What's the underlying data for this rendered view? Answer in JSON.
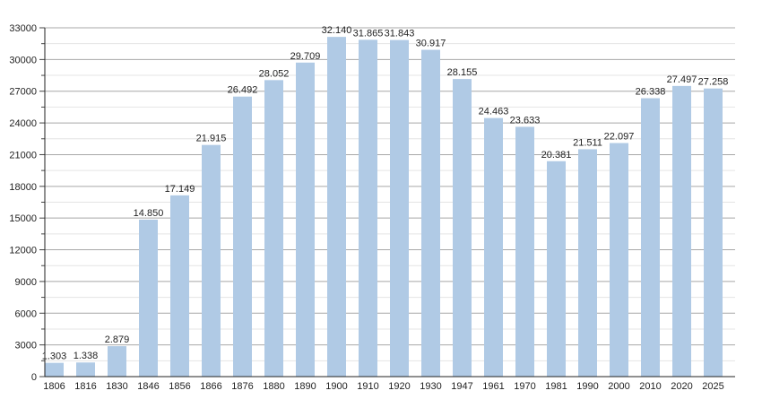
{
  "chart_data": {
    "type": "bar",
    "title": "",
    "xlabel": "",
    "ylabel": "",
    "ylim": [
      0,
      33000
    ],
    "yticks": [
      0,
      3000,
      6000,
      9000,
      12000,
      15000,
      18000,
      21000,
      24000,
      27000,
      30000,
      33000
    ],
    "minor_tick_step": 1500,
    "grid": true,
    "bar_color": "#b0cae5",
    "categories": [
      "1806",
      "1816",
      "1830",
      "1846",
      "1856",
      "1866",
      "1876",
      "1880",
      "1890",
      "1900",
      "1910",
      "1920",
      "1930",
      "1947",
      "1961",
      "1970",
      "1981",
      "1990",
      "2000",
      "2010",
      "2020",
      "2025"
    ],
    "values": [
      1303,
      1338,
      2879,
      14850,
      17149,
      21915,
      26492,
      28052,
      29709,
      32140,
      31865,
      31843,
      30917,
      28155,
      24463,
      23633,
      20381,
      21511,
      22097,
      26338,
      27497,
      27258
    ],
    "data_labels": [
      "1.303",
      "1.338",
      "2.879",
      "14.850",
      "17.149",
      "21.915",
      "26.492",
      "28.052",
      "29.709",
      "32.140",
      "31.865",
      "31.843",
      "30.917",
      "28.155",
      "24.463",
      "23.633",
      "20.381",
      "21.511",
      "22.097",
      "26.338",
      "27.497",
      "27.258"
    ]
  }
}
